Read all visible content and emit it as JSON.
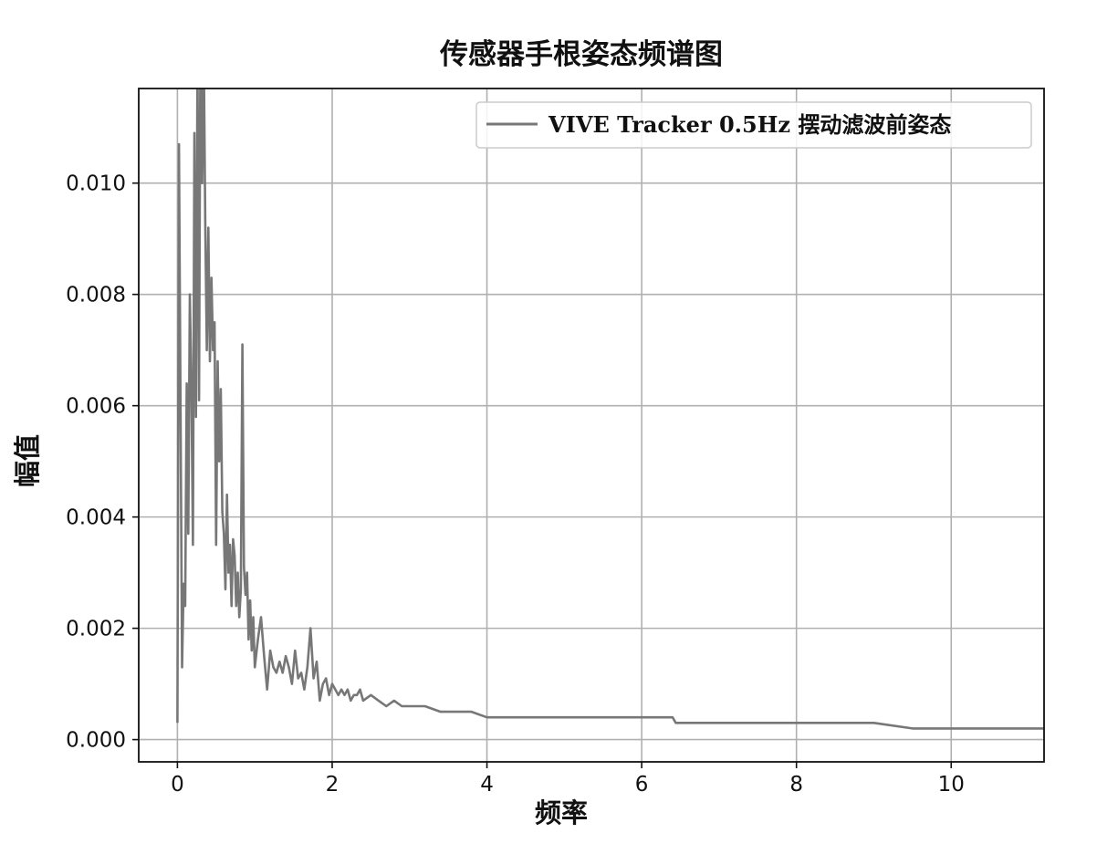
{
  "chart_data": {
    "type": "line",
    "title": "传感器手根姿态频谱图",
    "xlabel": "频率",
    "ylabel": "幅值",
    "xlim": [
      -0.5,
      11.2
    ],
    "ylim": [
      -0.0004,
      0.0117
    ],
    "xticks": [
      0,
      2,
      4,
      6,
      8,
      10
    ],
    "xtick_labels": [
      "0",
      "2",
      "4",
      "6",
      "8",
      "10"
    ],
    "yticks": [
      0.0,
      0.002,
      0.004,
      0.006,
      0.008,
      0.01
    ],
    "ytick_labels": [
      "0.000",
      "0.002",
      "0.004",
      "0.006",
      "0.008",
      "0.010"
    ],
    "grid": true,
    "legend_position": "upper-right",
    "series": [
      {
        "name": "VIVE Tracker 0.5Hz 摆动滤波前姿态",
        "color": "#777777",
        "x": [
          0.0,
          0.02,
          0.04,
          0.06,
          0.08,
          0.1,
          0.12,
          0.14,
          0.16,
          0.18,
          0.2,
          0.22,
          0.24,
          0.26,
          0.28,
          0.3,
          0.32,
          0.34,
          0.36,
          0.38,
          0.4,
          0.42,
          0.44,
          0.46,
          0.48,
          0.5,
          0.52,
          0.54,
          0.56,
          0.58,
          0.6,
          0.62,
          0.64,
          0.66,
          0.68,
          0.7,
          0.72,
          0.74,
          0.76,
          0.78,
          0.8,
          0.82,
          0.84,
          0.86,
          0.88,
          0.9,
          0.92,
          0.94,
          0.96,
          0.98,
          1.0,
          1.04,
          1.08,
          1.12,
          1.16,
          1.2,
          1.24,
          1.28,
          1.32,
          1.36,
          1.4,
          1.44,
          1.48,
          1.52,
          1.56,
          1.6,
          1.64,
          1.68,
          1.72,
          1.76,
          1.8,
          1.84,
          1.88,
          1.92,
          1.96,
          2.0,
          2.04,
          2.08,
          2.12,
          2.16,
          2.2,
          2.24,
          2.28,
          2.32,
          2.36,
          2.4,
          2.5,
          2.6,
          2.7,
          2.8,
          2.9,
          3.0,
          3.1,
          3.2,
          3.4,
          3.6,
          3.8,
          4.0,
          4.2,
          4.4,
          4.6,
          4.8,
          5.0,
          5.2,
          5.4,
          5.6,
          5.8,
          6.0,
          6.2,
          6.4,
          6.44,
          6.48,
          6.6,
          6.8,
          7.0,
          7.5,
          8.0,
          8.5,
          9.0,
          9.5,
          10.0,
          10.5,
          11.0,
          11.2
        ],
        "y": [
          0.0003,
          0.0107,
          0.006,
          0.0013,
          0.0028,
          0.0024,
          0.0064,
          0.0037,
          0.008,
          0.0064,
          0.0035,
          0.0109,
          0.0058,
          0.0122,
          0.0061,
          0.0135,
          0.01,
          0.0125,
          0.0093,
          0.007,
          0.0092,
          0.0068,
          0.0083,
          0.007,
          0.0075,
          0.0035,
          0.0068,
          0.005,
          0.0063,
          0.0041,
          0.0037,
          0.0027,
          0.0044,
          0.003,
          0.0035,
          0.0024,
          0.0036,
          0.0033,
          0.0024,
          0.003,
          0.0022,
          0.0027,
          0.0071,
          0.0031,
          0.0026,
          0.003,
          0.0018,
          0.0025,
          0.0016,
          0.0022,
          0.0013,
          0.0018,
          0.0022,
          0.0015,
          0.0009,
          0.0016,
          0.0013,
          0.0012,
          0.0014,
          0.0012,
          0.0015,
          0.0013,
          0.001,
          0.0016,
          0.0011,
          0.0012,
          0.0009,
          0.0013,
          0.002,
          0.0011,
          0.0014,
          0.0007,
          0.001,
          0.0011,
          0.0008,
          0.001,
          0.0009,
          0.0008,
          0.0009,
          0.0008,
          0.0009,
          0.0007,
          0.0008,
          0.0008,
          0.0009,
          0.0007,
          0.0008,
          0.0007,
          0.0006,
          0.0007,
          0.0006,
          0.0006,
          0.0006,
          0.0006,
          0.0005,
          0.0005,
          0.0005,
          0.0004,
          0.0004,
          0.0004,
          0.0004,
          0.0004,
          0.0004,
          0.0004,
          0.0004,
          0.0004,
          0.0004,
          0.0004,
          0.0004,
          0.0004,
          0.0003,
          0.0003,
          0.0003,
          0.0003,
          0.0003,
          0.0003,
          0.0003,
          0.0003,
          0.0003,
          0.0002,
          0.0002,
          0.0002,
          0.0002,
          0.0002
        ]
      }
    ]
  }
}
